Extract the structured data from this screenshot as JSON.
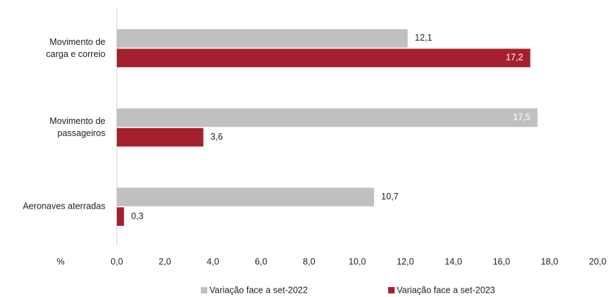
{
  "chart_data": {
    "type": "hbar",
    "categories": [
      "Movimento de\ncarga e correio",
      "Movimento de\npassageiros",
      "Aeronaves aterradas"
    ],
    "series": [
      {
        "name": "Variação face a set-2022",
        "color": "#c0c0c0",
        "values": [
          12.1,
          17.5,
          10.7
        ],
        "value_labels": [
          "12,1",
          "17,5",
          "10,7"
        ]
      },
      {
        "name": "Variação face a set-2023",
        "color": "#a5202e",
        "values": [
          17.2,
          3.6,
          0.3
        ],
        "value_labels": [
          "17,2",
          "3,6",
          "0,3"
        ]
      }
    ],
    "xlabel": "%",
    "xlim": [
      0,
      20
    ],
    "xticks": [
      {
        "value": 0,
        "label": "0,0"
      },
      {
        "value": 2,
        "label": "2,0"
      },
      {
        "value": 4,
        "label": "4,0"
      },
      {
        "value": 6,
        "label": "6,0"
      },
      {
        "value": 8,
        "label": "8,0"
      },
      {
        "value": 10,
        "label": "10,0"
      },
      {
        "value": 12,
        "label": "12,0"
      },
      {
        "value": 14,
        "label": "14,0"
      },
      {
        "value": 16,
        "label": "16,0"
      },
      {
        "value": 18,
        "label": "18,0"
      },
      {
        "value": 20,
        "label": "20,0"
      }
    ],
    "legend": "bottom"
  }
}
